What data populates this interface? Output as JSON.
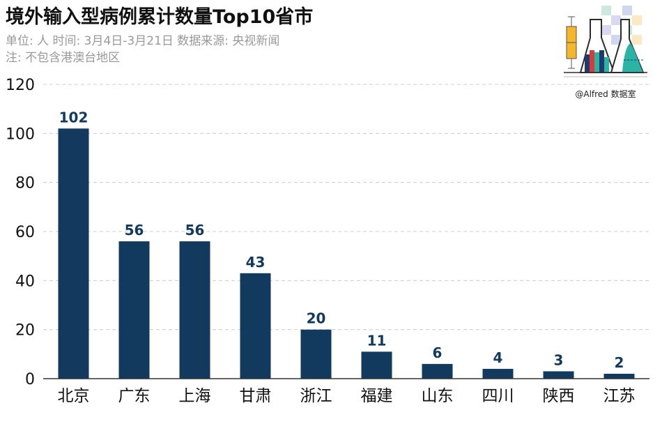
{
  "header": {
    "title": "境外输入型病例累计数量Top10省市",
    "subtitle": "单位: 人  时间: 3月4日-3月21日  数据来源: 央视新闻",
    "note": "注: 不包含港澳台地区"
  },
  "logo": {
    "text": "@Alfred 数据室"
  },
  "colors": {
    "bar": "#123a5e",
    "label": "#123a5e",
    "grid": "#cccccc",
    "axis": "#333333",
    "text": "#111111"
  },
  "chart_data": {
    "type": "bar",
    "categories": [
      "北京",
      "广东",
      "上海",
      "甘肃",
      "浙江",
      "福建",
      "山东",
      "四川",
      "陕西",
      "江苏"
    ],
    "values": [
      102,
      56,
      56,
      43,
      20,
      11,
      6,
      4,
      3,
      2
    ],
    "ylim": [
      0,
      120
    ],
    "yticks": [
      0,
      20,
      40,
      60,
      80,
      100,
      120
    ],
    "grid": true,
    "data_labels": true
  }
}
